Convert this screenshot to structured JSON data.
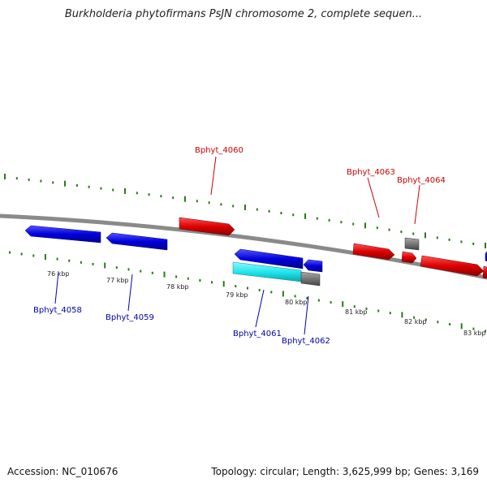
{
  "title": "Burkholderia phytofirmans PsJN chromosome 2, complete sequen...",
  "footer": {
    "accession": "Accession: NC_010676",
    "summary": "Topology: circular; Length: 3,625,999 bp; Genes: 3,169"
  },
  "colors": {
    "forward_gene": "#dd0000",
    "reverse_gene": "#0000dd",
    "selected_gene": "#22e6ee",
    "other_feature": "#777777",
    "backbone": "#8a8a8a",
    "tick": "#2a7a1a",
    "forward_label": "#cc0000",
    "reverse_label": "#0000aa"
  },
  "scale_labels": [
    "76 kbp",
    "77 kbp",
    "78 kbp",
    "79 kbp",
    "80 kbp",
    "81 kbp",
    "82 kbp",
    "83 kbp"
  ],
  "genes": [
    {
      "id": "Bphyt_4058",
      "strand": "reverse",
      "label": "Bphyt_4058"
    },
    {
      "id": "Bphyt_4059",
      "strand": "reverse",
      "label": "Bphyt_4059"
    },
    {
      "id": "Bphyt_4060",
      "strand": "forward",
      "label": "Bphyt_4060"
    },
    {
      "id": "Bphyt_4061",
      "strand": "reverse",
      "label": "Bphyt_4061"
    },
    {
      "id": "Bphyt_4062",
      "strand": "reverse",
      "label": "Bphyt_4062"
    },
    {
      "id": "Bphyt_4063",
      "strand": "forward",
      "label": "Bphyt_4063"
    },
    {
      "id": "Bphyt_4064",
      "strand": "forward",
      "label": "Bphyt_4064"
    }
  ]
}
